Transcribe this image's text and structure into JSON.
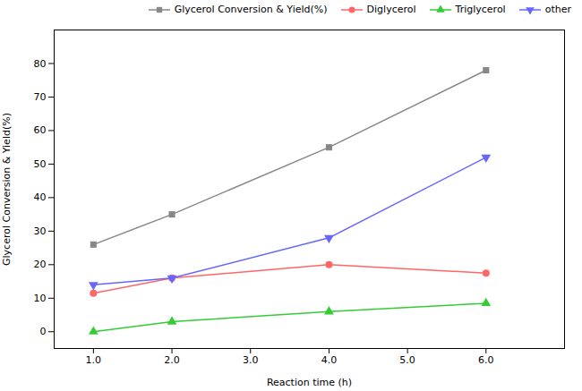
{
  "chart_data": {
    "type": "line",
    "xlabel": "Reaction time (h)",
    "ylabel": "Glycerol Conversion & Yield(%)",
    "x": [
      1,
      2,
      4,
      6
    ],
    "series": [
      {
        "name": "Glycerol Conversion & Yield(%)",
        "color": "#888888",
        "marker": "square",
        "line_style": "solid",
        "values": [
          26,
          35,
          55,
          78
        ]
      },
      {
        "name": "Diglycerol",
        "color": "#ff6666",
        "marker": "circle",
        "line_style": "solid",
        "values": [
          11.5,
          16,
          20,
          17.5
        ]
      },
      {
        "name": "Triglycerol",
        "color": "#33cc33",
        "marker": "triangle-up",
        "line_style": "solid",
        "values": [
          0,
          3,
          6,
          8.5
        ]
      },
      {
        "name": "other",
        "color": "#6666ff",
        "marker": "triangle-down",
        "line_style": "solid",
        "values": [
          14,
          16,
          28,
          52
        ]
      }
    ],
    "xlim": [
      0.5,
      7
    ],
    "ylim": [
      -5,
      90
    ],
    "xticks": [
      1,
      2,
      3,
      4,
      5,
      6
    ],
    "yticks": [
      0,
      10,
      20,
      30,
      40,
      50,
      60,
      70,
      80
    ],
    "grid": false,
    "legend": "upper right"
  }
}
